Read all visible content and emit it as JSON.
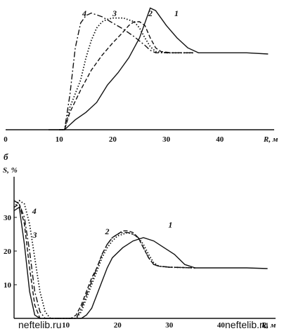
{
  "chart_data": [
    {
      "type": "line",
      "panel": "a",
      "xlabel": "R, м",
      "xlim": [
        0,
        50
      ],
      "x_ticks": [
        "0",
        "10",
        "20",
        "30",
        "40"
      ],
      "series": [
        {
          "name": "1",
          "style": "solid",
          "points": [
            [
              8,
              0
            ],
            [
              11,
              0
            ],
            [
              12,
              4
            ],
            [
              13,
              8
            ],
            [
              15,
              14
            ],
            [
              17,
              22
            ],
            [
              19,
              36
            ],
            [
              21,
              46
            ],
            [
              23,
              58
            ],
            [
              25,
              74
            ],
            [
              26,
              86
            ],
            [
              27,
              98
            ],
            [
              28,
              96
            ],
            [
              30,
              84
            ],
            [
              32,
              74
            ],
            [
              34,
              66
            ],
            [
              36,
              62
            ],
            [
              40,
              62
            ],
            [
              45,
              62
            ],
            [
              49,
              61
            ]
          ]
        },
        {
          "name": "2",
          "style": "dashed",
          "points": [
            [
              10,
              0
            ],
            [
              11,
              0
            ],
            [
              12,
              14
            ],
            [
              14,
              32
            ],
            [
              16,
              48
            ],
            [
              18,
              60
            ],
            [
              20,
              70
            ],
            [
              22,
              79
            ],
            [
              23,
              84
            ],
            [
              24,
              87
            ],
            [
              25,
              87
            ],
            [
              26,
              84
            ],
            [
              27,
              74
            ],
            [
              28,
              66
            ],
            [
              29,
              63
            ],
            [
              31,
              62
            ],
            [
              35,
              62
            ]
          ]
        },
        {
          "name": "3",
          "style": "dotted",
          "points": [
            [
              10,
              0
            ],
            [
              11,
              0
            ],
            [
              12,
              18
            ],
            [
              14,
              40
            ],
            [
              15,
              58
            ],
            [
              16,
              72
            ],
            [
              17,
              82
            ],
            [
              18,
              87
            ],
            [
              19,
              89
            ],
            [
              20,
              90
            ],
            [
              22,
              90
            ],
            [
              24,
              87
            ],
            [
              25,
              82
            ],
            [
              26,
              74
            ],
            [
              27,
              67
            ],
            [
              28,
              63
            ],
            [
              30,
              62
            ],
            [
              35,
              62
            ]
          ]
        },
        {
          "name": "4",
          "style": "dashdot",
          "points": [
            [
              10,
              0
            ],
            [
              11,
              0
            ],
            [
              12,
              28
            ],
            [
              13,
              66
            ],
            [
              14,
              86
            ],
            [
              15,
              92
            ],
            [
              16,
              94
            ],
            [
              18,
              91
            ],
            [
              20,
              86
            ],
            [
              22,
              81
            ],
            [
              24,
              75
            ],
            [
              26,
              68
            ],
            [
              27,
              64
            ],
            [
              28,
              62
            ],
            [
              31,
              62
            ],
            [
              35,
              62
            ]
          ]
        }
      ]
    },
    {
      "type": "line",
      "panel": "б",
      "ylabel": "S, %",
      "xlabel": "R, м",
      "xlim": [
        0,
        50
      ],
      "ylim": [
        0,
        36
      ],
      "x_ticks": [
        "10",
        "20",
        "30",
        "40"
      ],
      "y_ticks": [
        "10",
        "20",
        "30"
      ],
      "series": [
        {
          "name": "1",
          "style": "solid",
          "points": [
            [
              0,
              32
            ],
            [
              1,
              33
            ],
            [
              2,
              22
            ],
            [
              3,
              8
            ],
            [
              4,
              1
            ],
            [
              5,
              0
            ],
            [
              13,
              0
            ],
            [
              14,
              1
            ],
            [
              15,
              3
            ],
            [
              16,
              7
            ],
            [
              17,
              11
            ],
            [
              18,
              15
            ],
            [
              19,
              18
            ],
            [
              21,
              21
            ],
            [
              23,
              23
            ],
            [
              25,
              24
            ],
            [
              27,
              23
            ],
            [
              29,
              21
            ],
            [
              31,
              19
            ],
            [
              33,
              16
            ],
            [
              35,
              15
            ],
            [
              40,
              15
            ],
            [
              45,
              15
            ],
            [
              49,
              14.8
            ]
          ]
        },
        {
          "name": "2",
          "style": "dashed",
          "points": [
            [
              0,
              33
            ],
            [
              1,
              34
            ],
            [
              2,
              28
            ],
            [
              3,
              15
            ],
            [
              4,
              4
            ],
            [
              5,
              0
            ],
            [
              11,
              0
            ],
            [
              12,
              1
            ],
            [
              13,
              4
            ],
            [
              14,
              8
            ],
            [
              15,
              12
            ],
            [
              16,
              15
            ],
            [
              17,
              19
            ],
            [
              18,
              22
            ],
            [
              19,
              24
            ],
            [
              20,
              25
            ],
            [
              21,
              26
            ],
            [
              22,
              26
            ],
            [
              23,
              25.5
            ],
            [
              24,
              24
            ],
            [
              25,
              21
            ],
            [
              26,
              18
            ],
            [
              27,
              16
            ],
            [
              28,
              15.5
            ],
            [
              30,
              15.2
            ],
            [
              35,
              15
            ]
          ]
        },
        {
          "name": "3",
          "style": "dotted",
          "points": [
            [
              0,
              33
            ],
            [
              1,
              35
            ],
            [
              2,
              34
            ],
            [
              3,
              28
            ],
            [
              4,
              18
            ],
            [
              5,
              8
            ],
            [
              6,
              2
            ],
            [
              7,
              0
            ],
            [
              12,
              0
            ],
            [
              13,
              2
            ],
            [
              14,
              6
            ],
            [
              15,
              10
            ],
            [
              16,
              14
            ],
            [
              17,
              18
            ],
            [
              18,
              21
            ],
            [
              19,
              23
            ],
            [
              20,
              24.5
            ],
            [
              21,
              25
            ],
            [
              22,
              25.5
            ],
            [
              23,
              25
            ],
            [
              24,
              24
            ],
            [
              25,
              22
            ],
            [
              26,
              19
            ],
            [
              27,
              16.5
            ],
            [
              28,
              15.5
            ],
            [
              30,
              15.2
            ],
            [
              35,
              15
            ]
          ]
        },
        {
          "name": "4",
          "style": "dashdot",
          "points": [
            [
              0,
              35
            ],
            [
              1,
              34
            ],
            [
              2,
              30
            ],
            [
              3,
              20
            ],
            [
              4,
              8
            ],
            [
              5,
              2
            ],
            [
              6,
              0
            ],
            [
              12,
              0
            ],
            [
              13,
              3
            ],
            [
              14,
              7
            ],
            [
              15,
              11
            ],
            [
              16,
              15
            ],
            [
              17,
              19
            ],
            [
              18,
              22
            ],
            [
              19,
              24
            ],
            [
              20,
              25
            ],
            [
              21,
              25.5
            ],
            [
              22,
              25.5
            ],
            [
              23,
              25
            ],
            [
              24,
              24
            ],
            [
              25,
              21
            ],
            [
              26,
              18
            ],
            [
              27,
              16
            ],
            [
              28,
              15.5
            ],
            [
              30,
              15.2
            ],
            [
              35,
              15
            ]
          ]
        }
      ],
      "curve_labels": [
        {
          "name": "4",
          "at": [
            3.5,
            31
          ]
        },
        {
          "name": "3",
          "at": [
            3.6,
            24
          ]
        },
        {
          "name": "2",
          "at": [
            17.6,
            25
          ]
        },
        {
          "name": "1",
          "at": [
            29.8,
            27
          ]
        }
      ]
    }
  ],
  "page": {
    "panel_b_letter": "б",
    "watermark_left": "neftelib.ru",
    "watermark_right": "neftelib.ru"
  }
}
